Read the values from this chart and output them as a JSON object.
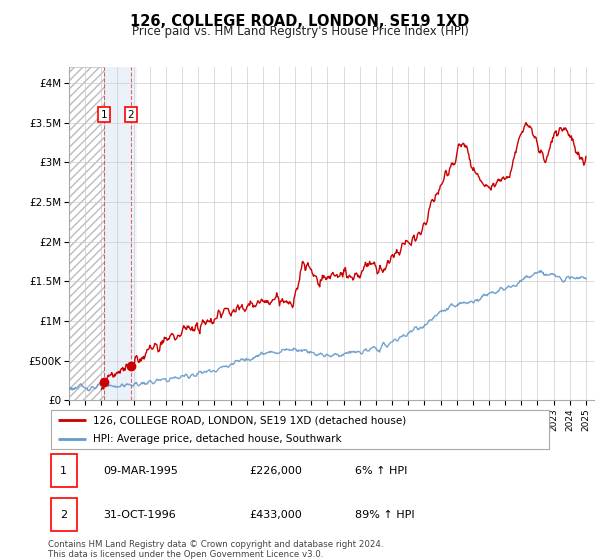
{
  "title": "126, COLLEGE ROAD, LONDON, SE19 1XD",
  "subtitle": "Price paid vs. HM Land Registry's House Price Index (HPI)",
  "ylabel_ticks": [
    "£0",
    "£500K",
    "£1M",
    "£1.5M",
    "£2M",
    "£2.5M",
    "£3M",
    "£3.5M",
    "£4M"
  ],
  "ytick_values": [
    0,
    500000,
    1000000,
    1500000,
    2000000,
    2500000,
    3000000,
    3500000,
    4000000
  ],
  "ylim": [
    0,
    4200000
  ],
  "xlim_start": 1993.0,
  "xlim_end": 2025.5,
  "hpi_color": "#6699cc",
  "price_color": "#cc0000",
  "transaction1": {
    "date_num": 1995.19,
    "price": 226000,
    "label": "1"
  },
  "transaction2": {
    "date_num": 1996.83,
    "price": 433000,
    "label": "2"
  },
  "legend_line1": "126, COLLEGE ROAD, LONDON, SE19 1XD (detached house)",
  "legend_line2": "HPI: Average price, detached house, Southwark",
  "table_rows": [
    {
      "num": "1",
      "date": "09-MAR-1995",
      "price": "£226,000",
      "change": "6% ↑ HPI"
    },
    {
      "num": "2",
      "date": "31-OCT-1996",
      "price": "£433,000",
      "change": "89% ↑ HPI"
    }
  ],
  "footer": "Contains HM Land Registry data © Crown copyright and database right 2024.\nThis data is licensed under the Open Government Licence v3.0.",
  "hpi_key_x": [
    1993,
    1994,
    1995,
    1996,
    1997,
    1998,
    1999,
    2000,
    2001,
    2002,
    2003,
    2004,
    2005,
    2006,
    2007,
    2008,
    2009,
    2010,
    2011,
    2012,
    2013,
    2014,
    2015,
    2016,
    2017,
    2018,
    2019,
    2020,
    2021,
    2022,
    2023,
    2024,
    2025
  ],
  "hpi_key_y": [
    155000,
    165000,
    175000,
    185000,
    200000,
    225000,
    260000,
    300000,
    340000,
    390000,
    450000,
    530000,
    580000,
    620000,
    650000,
    610000,
    570000,
    590000,
    610000,
    650000,
    730000,
    850000,
    950000,
    1100000,
    1200000,
    1250000,
    1350000,
    1400000,
    1500000,
    1600000,
    1570000,
    1560000,
    1550000
  ],
  "price_key_x": [
    1995.0,
    1995.2,
    1996.0,
    1996.83,
    1997.0,
    1997.5,
    1998.0,
    1999.0,
    2000.0,
    2001.0,
    2002.0,
    2003.0,
    2004.0,
    2005.0,
    2006.0,
    2007.0,
    2007.5,
    2008.0,
    2009.0,
    2010.0,
    2011.0,
    2011.5,
    2012.0,
    2013.0,
    2014.0,
    2015.0,
    2015.5,
    2016.0,
    2016.5,
    2017.0,
    2017.5,
    2018.0,
    2018.5,
    2019.0,
    2019.5,
    2020.0,
    2020.5,
    2021.0,
    2021.5,
    2022.0,
    2022.5,
    2023.0,
    2023.5,
    2024.0,
    2024.5,
    2025.0
  ],
  "price_key_y": [
    220000,
    226000,
    380000,
    433000,
    480000,
    560000,
    640000,
    750000,
    870000,
    950000,
    1050000,
    1150000,
    1200000,
    1230000,
    1280000,
    1320000,
    1700000,
    1600000,
    1550000,
    1580000,
    1600000,
    1750000,
    1650000,
    1800000,
    2000000,
    2200000,
    2500000,
    2700000,
    2900000,
    3100000,
    3200000,
    2900000,
    2800000,
    2700000,
    2750000,
    2800000,
    3000000,
    3350000,
    3450000,
    3200000,
    3050000,
    3300000,
    3400000,
    3300000,
    3100000,
    3000000
  ]
}
